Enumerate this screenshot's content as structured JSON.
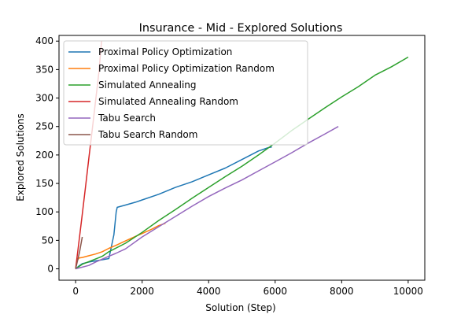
{
  "chart_data": {
    "type": "line",
    "title": "Insurance - Mid - Explored Solutions",
    "xlabel": "Solution (Step)",
    "ylabel": "Explored Solutions",
    "xlim": [
      -500,
      10500
    ],
    "ylim": [
      -20,
      410
    ],
    "xticks": [
      0,
      2000,
      4000,
      6000,
      8000,
      10000
    ],
    "yticks": [
      0,
      50,
      100,
      150,
      200,
      250,
      300,
      350,
      400
    ],
    "grid": false,
    "legend_position": "top-left",
    "series": [
      {
        "name": "Proximal Policy Optimization",
        "color": "#1f77b4",
        "x": [
          0,
          100,
          200,
          400,
          600,
          800,
          1000,
          1150,
          1220,
          1250,
          1500,
          1800,
          2000,
          2500,
          3000,
          3500,
          4000,
          4500,
          5000,
          5500,
          5800,
          5900
        ],
        "y": [
          0,
          5,
          9,
          12,
          14,
          16,
          18,
          60,
          100,
          108,
          112,
          117,
          121,
          131,
          143,
          153,
          165,
          177,
          192,
          207,
          213,
          214
        ]
      },
      {
        "name": "Proximal Policy Optimization Random",
        "color": "#ff7f0e",
        "x": [
          0,
          50,
          100,
          200,
          400,
          600,
          800,
          1000,
          1200,
          1500,
          1800,
          2000,
          2300,
          2500,
          2700
        ],
        "y": [
          0,
          15,
          19,
          20,
          23,
          26,
          30,
          36,
          41,
          49,
          57,
          62,
          70,
          76,
          80
        ]
      },
      {
        "name": "Simulated Annealing",
        "color": "#2ca02c",
        "x": [
          0,
          200,
          500,
          800,
          1000,
          1500,
          2000,
          2500,
          3000,
          3500,
          4000,
          4500,
          5000,
          5500,
          6000,
          6500,
          7000,
          7500,
          8000,
          8500,
          9000,
          9500,
          10000
        ],
        "y": [
          0,
          8,
          15,
          22,
          30,
          45,
          64,
          85,
          104,
          124,
          143,
          162,
          180,
          200,
          221,
          243,
          263,
          283,
          302,
          320,
          340,
          355,
          372
        ]
      },
      {
        "name": "Simulated Annealing Random",
        "color": "#d62728",
        "x": [
          0,
          100,
          200,
          300,
          400,
          500,
          600,
          700,
          780
        ],
        "y": [
          0,
          48,
          96,
          145,
          195,
          245,
          295,
          345,
          400
        ]
      },
      {
        "name": "Tabu Search",
        "color": "#9467bd",
        "x": [
          0,
          200,
          400,
          600,
          800,
          1000,
          1200,
          1500,
          2000,
          2500,
          3000,
          3500,
          4000,
          4500,
          5000,
          5500,
          6000,
          6500,
          7000,
          7500,
          7900
        ],
        "y": [
          0,
          3,
          6,
          12,
          17,
          22,
          27,
          35,
          56,
          74,
          92,
          110,
          127,
          142,
          156,
          172,
          188,
          204,
          221,
          237,
          250
        ]
      },
      {
        "name": "Tabu Search Random",
        "color": "#8c564b",
        "x": [
          0,
          60,
          120,
          160,
          200
        ],
        "y": [
          0,
          15,
          30,
          43,
          56
        ]
      }
    ]
  }
}
